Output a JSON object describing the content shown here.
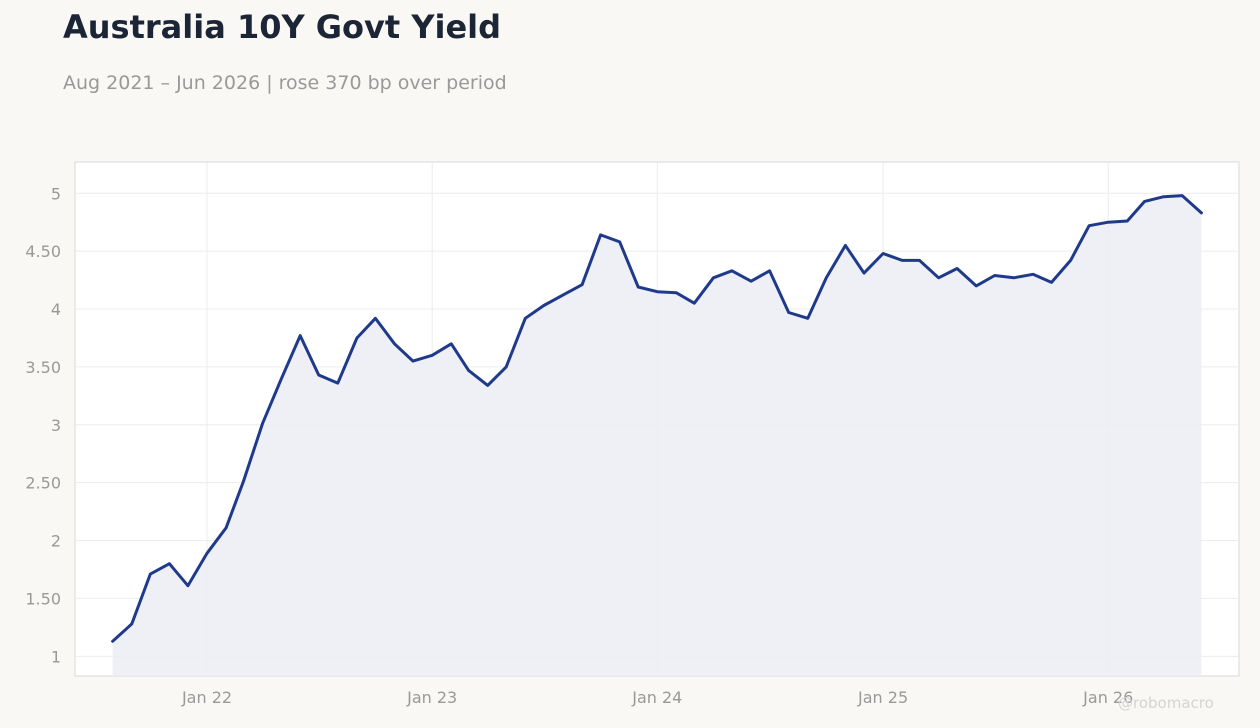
{
  "header": {
    "title": "Australia 10Y Govt Yield",
    "subtitle": "Aug 2021 – Jun 2026 | rose 370 bp over period"
  },
  "watermark": "@robomacro",
  "colors": {
    "line": "#1f3a8a",
    "fill": "#eceef5",
    "grid": "#ececec",
    "tick_text": "#999999",
    "plot_border": "#d9d9d9",
    "page_background": "#f9f8f5"
  },
  "chart_data": {
    "type": "area",
    "x_axis_kind": "date",
    "x": [
      "2021-08-01",
      "2021-09-01",
      "2021-10-01",
      "2021-11-01",
      "2021-12-01",
      "2022-01-01",
      "2022-02-01",
      "2022-03-01",
      "2022-04-01",
      "2022-05-01",
      "2022-06-01",
      "2022-07-01",
      "2022-08-01",
      "2022-09-01",
      "2022-10-01",
      "2022-11-01",
      "2022-12-01",
      "2023-01-01",
      "2023-02-01",
      "2023-03-01",
      "2023-04-01",
      "2023-05-01",
      "2023-06-01",
      "2023-07-01",
      "2023-08-01",
      "2023-09-01",
      "2023-10-01",
      "2023-11-01",
      "2023-12-01",
      "2024-01-01",
      "2024-02-01",
      "2024-03-01",
      "2024-04-01",
      "2024-05-01",
      "2024-06-01",
      "2024-07-01",
      "2024-08-01",
      "2024-09-01",
      "2024-10-01",
      "2024-11-01",
      "2024-12-01",
      "2025-01-01",
      "2025-02-01",
      "2025-03-01",
      "2025-04-01",
      "2025-05-01",
      "2025-06-01",
      "2025-07-01",
      "2025-08-01",
      "2025-09-01",
      "2025-10-01",
      "2025-11-01",
      "2025-12-01",
      "2026-01-01",
      "2026-02-01",
      "2026-03-01",
      "2026-04-01",
      "2026-05-01",
      "2026-06-01"
    ],
    "series": [
      {
        "values": [
          1.13,
          1.28,
          1.71,
          1.8,
          1.61,
          1.89,
          2.11,
          2.51,
          3.01,
          3.39,
          3.77,
          3.43,
          3.36,
          3.75,
          3.92,
          3.7,
          3.55,
          3.6,
          3.7,
          3.47,
          3.34,
          3.5,
          3.92,
          4.03,
          4.12,
          4.21,
          4.64,
          4.58,
          4.19,
          4.15,
          4.14,
          4.05,
          4.27,
          4.33,
          4.24,
          4.33,
          3.97,
          3.92,
          4.27,
          4.55,
          4.31,
          4.48,
          4.42,
          4.42,
          4.27,
          4.35,
          4.2,
          4.29,
          4.27,
          4.3,
          4.23,
          4.42,
          4.72,
          4.75,
          4.76,
          4.93,
          4.97,
          4.98,
          4.83
        ]
      }
    ],
    "y_ticks": [
      "1",
      "1.50",
      "2",
      "2.50",
      "3",
      "3.50",
      "4",
      "4.50",
      "5"
    ],
    "ylim": [
      0.83,
      5.27
    ],
    "x_ticks": [
      {
        "date": "2022-01-01",
        "label": "Jan 22"
      },
      {
        "date": "2023-01-01",
        "label": "Jan 23"
      },
      {
        "date": "2024-01-01",
        "label": "Jan 24"
      },
      {
        "date": "2025-01-01",
        "label": "Jan 25"
      },
      {
        "date": "2026-01-01",
        "label": "Jan 26"
      }
    ],
    "xlim": [
      "2021-06-01",
      "2026-08-01"
    ],
    "grid": true,
    "legend": "none"
  }
}
